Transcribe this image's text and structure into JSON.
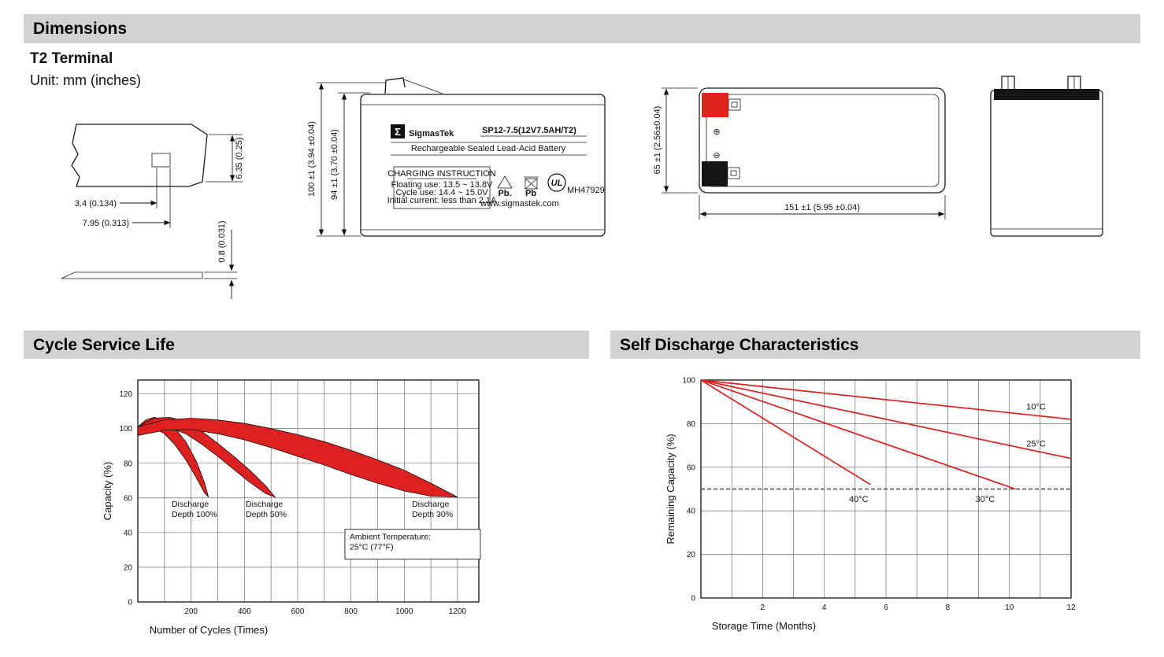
{
  "headers": {
    "dimensions": "Dimensions",
    "cycle": "Cycle Service Life",
    "self_discharge": "Self Discharge Characteristics"
  },
  "dimensions": {
    "terminal_label": "T2 Terminal",
    "unit_note": "Unit: mm (inches)",
    "terminal_drawing": {
      "height": "6.35 (0.25)",
      "hole_offset": "3.4 (0.134)",
      "width": "7.95 (0.313)",
      "thickness": "0.8 (0.031)"
    },
    "front_view": {
      "total_height": "100 ±1 (3.94 ±0.04)",
      "case_height": "94 ±1 (3.70 ±0.04)",
      "logo_glyph": "Σ",
      "brand": "SigmasTek",
      "model": "SP12-7.5(12V7.5AH/T2)",
      "type_line": "Rechargeable Sealed Lead-Acid Battery",
      "charging": {
        "title": "CHARGING INSTRUCTION",
        "floating": "Floating use: 13.5 ~ 13.8V",
        "cycle": "Cycle use: 14.4 ~ 15.0V",
        "initial": "Initial current: less than 2.1A"
      },
      "pb1": "Pb.",
      "pb2": "Pb",
      "ul_text": "UL",
      "ul_code": "MH47929",
      "website": "www.sigmastek.com"
    },
    "top_view": {
      "height": "65 ±1 (2.56±0.04)",
      "width": "151 ±1 (5.95 ±0.04)",
      "plus_symbol": "⊕",
      "minus_symbol": "⊖"
    }
  },
  "chart_data": [
    {
      "id": "cycle_life",
      "type": "area",
      "xlabel": "Number of Cycles (Times)",
      "ylabel": "Capacity (%)",
      "xlim": [
        0,
        1280
      ],
      "ylim": [
        0,
        128
      ],
      "x_ticks": [
        200,
        400,
        600,
        800,
        1000,
        1200
      ],
      "y_ticks": [
        0,
        20,
        40,
        60,
        80,
        100,
        120
      ],
      "x_grid_step": 100,
      "y_grid_step": 20,
      "grid": true,
      "color": "#dd2020",
      "bands": [
        {
          "name": "Discharge Depth 100%",
          "x": [
            0,
            30,
            60,
            100,
            140,
            180,
            220,
            250,
            265
          ],
          "upper": [
            101,
            105,
            106.5,
            105,
            100,
            92.5,
            81,
            69,
            60.5
          ],
          "lower": [
            96,
            99.5,
            100.5,
            97,
            90.5,
            82,
            71.5,
            63,
            60.5
          ]
        },
        {
          "name": "Discharge Depth 50%",
          "x": [
            0,
            60,
            120,
            180,
            240,
            300,
            360,
            420,
            480,
            515
          ],
          "upper": [
            101,
            106,
            106.5,
            104,
            98.5,
            91.5,
            84,
            76,
            67,
            60.5
          ],
          "lower": [
            96,
            100,
            100.5,
            97,
            91,
            84,
            76.5,
            69,
            62.5,
            60.5
          ]
        },
        {
          "name": "Discharge Depth 30%",
          "x": [
            0,
            100,
            200,
            300,
            400,
            500,
            600,
            700,
            800,
            900,
            1000,
            1100,
            1200
          ],
          "upper": [
            101,
            105,
            106,
            105,
            103,
            100,
            96.5,
            92.5,
            87.5,
            82,
            76,
            68.5,
            60.5
          ],
          "lower": [
            96,
            99,
            99.5,
            97,
            93.5,
            89,
            84,
            79,
            73.5,
            68.5,
            64,
            61,
            60.5
          ]
        }
      ],
      "annotations": [
        {
          "lines": [
            "Discharge",
            "Depth 100%"
          ],
          "x": 127,
          "y": 55,
          "boxed": false
        },
        {
          "lines": [
            "Discharge",
            "Depth 50%"
          ],
          "x": 405,
          "y": 55,
          "boxed": false
        },
        {
          "lines": [
            "Discharge",
            "Depth 30%"
          ],
          "x": 1029,
          "y": 55,
          "boxed": false
        },
        {
          "lines": [
            "Ambient Temperature:",
            "25°C (77°F)"
          ],
          "x": 795,
          "y": 36,
          "boxed": true
        }
      ]
    },
    {
      "id": "self_discharge",
      "type": "line",
      "xlabel": "Storage Time (Months)",
      "ylabel": "Remaining Capacity (%)",
      "xlim": [
        0,
        12
      ],
      "ylim": [
        0,
        100
      ],
      "x_ticks": [
        2,
        4,
        6,
        8,
        10,
        12
      ],
      "y_ticks": [
        0,
        20,
        40,
        60,
        80,
        100
      ],
      "x_grid_step": 1,
      "y_grid_step": 20,
      "grid": true,
      "color": "#dd2020",
      "dashed_y": 50,
      "series": [
        {
          "name": "10°C",
          "x": [
            0,
            12
          ],
          "y": [
            100,
            82
          ],
          "label_x": 10.55,
          "label_y": 86.5
        },
        {
          "name": "25°C",
          "x": [
            0,
            12
          ],
          "y": [
            100,
            64
          ],
          "label_x": 10.55,
          "label_y": 69.5
        },
        {
          "name": "30°C",
          "x": [
            0,
            10.2
          ],
          "y": [
            100,
            50
          ],
          "label_x": 8.9,
          "label_y": 44
        },
        {
          "name": "40°C",
          "x": [
            0,
            5.5
          ],
          "y": [
            100,
            52
          ],
          "label_x": 4.8,
          "label_y": 44
        }
      ]
    }
  ]
}
